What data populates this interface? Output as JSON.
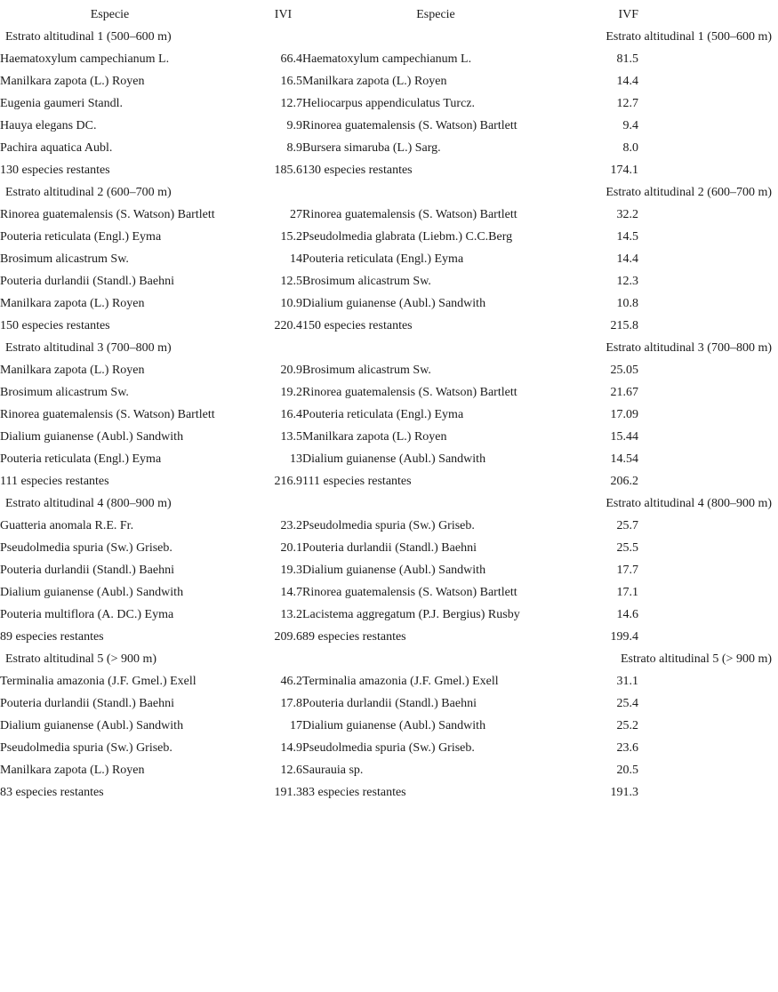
{
  "page": {
    "background": "#ffffff",
    "text_color": "#1b1b1b"
  },
  "table": {
    "headers": [
      "Especie",
      "IVI",
      "Especie",
      "IVF"
    ],
    "sections": [
      {
        "title": "Estrato altitudinal 1 (500–600 m)",
        "rows": [
          [
            "Haematoxylum campechianum L.",
            "66.4",
            "Haematoxylum campechianum L.",
            "81.5"
          ],
          [
            "Manilkara zapota (L.) Royen",
            "16.5",
            "Manilkara zapota (L.) Royen",
            "14.4"
          ],
          [
            "Eugenia gaumeri Standl.",
            "12.7",
            "Heliocarpus appendiculatus Turcz.",
            "12.7"
          ],
          [
            "Hauya elegans DC.",
            "9.9",
            "Rinorea guatemalensis (S. Watson) Bartlett",
            "9.4"
          ],
          [
            "Pachira aquatica Aubl.",
            "8.9",
            "Bursera simaruba (L.) Sarg.",
            "8.0"
          ],
          [
            "130 especies restantes",
            "185.6",
            "130 especies restantes",
            "174.1"
          ]
        ]
      },
      {
        "title": "Estrato altitudinal 2 (600–700 m)",
        "rows": [
          [
            "Rinorea guatemalensis (S. Watson) Bartlett",
            "27",
            "Rinorea guatemalensis (S. Watson) Bartlett",
            "32.2"
          ],
          [
            "Pouteria reticulata (Engl.) Eyma",
            "15.2",
            "Pseudolmedia glabrata (Liebm.) C.C.Berg",
            "14.5"
          ],
          [
            "Brosimum alicastrum Sw.",
            "14",
            "Pouteria reticulata (Engl.) Eyma",
            "14.4"
          ],
          [
            "Pouteria durlandii (Standl.) Baehni",
            "12.5",
            "Brosimum alicastrum Sw.",
            "12.3"
          ],
          [
            "Manilkara zapota (L.) Royen",
            "10.9",
            "Dialium guianense (Aubl.) Sandwith",
            "10.8"
          ],
          [
            "150 especies restantes",
            "220.4",
            "150 especies restantes",
            "215.8"
          ]
        ]
      },
      {
        "title": "Estrato altitudinal 3 (700–800 m)",
        "rows": [
          [
            "Manilkara zapota (L.) Royen",
            "20.9",
            "Brosimum alicastrum Sw.",
            "25.05"
          ],
          [
            "Brosimum alicastrum Sw.",
            "19.2",
            "Rinorea guatemalensis (S. Watson) Bartlett",
            "21.67"
          ],
          [
            "Rinorea guatemalensis (S. Watson) Bartlett",
            "16.4",
            "Pouteria reticulata (Engl.) Eyma",
            "17.09"
          ],
          [
            "Dialium guianense (Aubl.) Sandwith",
            "13.5",
            "Manilkara zapota (L.) Royen",
            "15.44"
          ],
          [
            "Pouteria reticulata (Engl.) Eyma",
            "13",
            "Dialium guianense (Aubl.) Sandwith",
            "14.54"
          ],
          [
            "111 especies restantes",
            "216.9",
            "111 especies restantes",
            "206.2"
          ]
        ]
      },
      {
        "title": "Estrato altitudinal 4 (800–900 m)",
        "rows": [
          [
            "Guatteria anomala R.E. Fr.",
            "23.2",
            "Pseudolmedia spuria (Sw.) Griseb.",
            "25.7"
          ],
          [
            "Pseudolmedia spuria (Sw.) Griseb.",
            "20.1",
            "Pouteria durlandii (Standl.) Baehni",
            "25.5"
          ],
          [
            "Pouteria durlandii (Standl.) Baehni",
            "19.3",
            "Dialium guianense (Aubl.) Sandwith",
            "17.7"
          ],
          [
            "Dialium guianense (Aubl.) Sandwith",
            "14.7",
            "Rinorea guatemalensis (S. Watson) Bartlett",
            "17.1"
          ],
          [
            "Pouteria multiflora (A. DC.) Eyma",
            "13.2",
            "Lacistema aggregatum (P.J. Bergius) Rusby",
            "14.6"
          ],
          [
            "89 especies restantes",
            "209.6",
            "89 especies restantes",
            "199.4"
          ]
        ]
      },
      {
        "title": "Estrato altitudinal 5 (> 900 m)",
        "rows": [
          [
            "Terminalia amazonia (J.F. Gmel.) Exell",
            "46.2",
            "Terminalia amazonia (J.F. Gmel.) Exell",
            "31.1"
          ],
          [
            "Pouteria durlandii (Standl.) Baehni",
            "17.8",
            "Pouteria durlandii (Standl.) Baehni",
            "25.4"
          ],
          [
            "Dialium guianense (Aubl.) Sandwith",
            "17",
            "Dialium guianense (Aubl.) Sandwith",
            "25.2"
          ],
          [
            "Pseudolmedia spuria (Sw.) Griseb.",
            "14.9",
            "Pseudolmedia spuria (Sw.) Griseb.",
            "23.6"
          ],
          [
            "Manilkara zapota (L.) Royen",
            "12.6",
            "Saurauia sp.",
            "20.5"
          ],
          [
            "83 especies restantes",
            "191.3",
            "83 especies restantes",
            "191.3"
          ]
        ]
      }
    ]
  }
}
